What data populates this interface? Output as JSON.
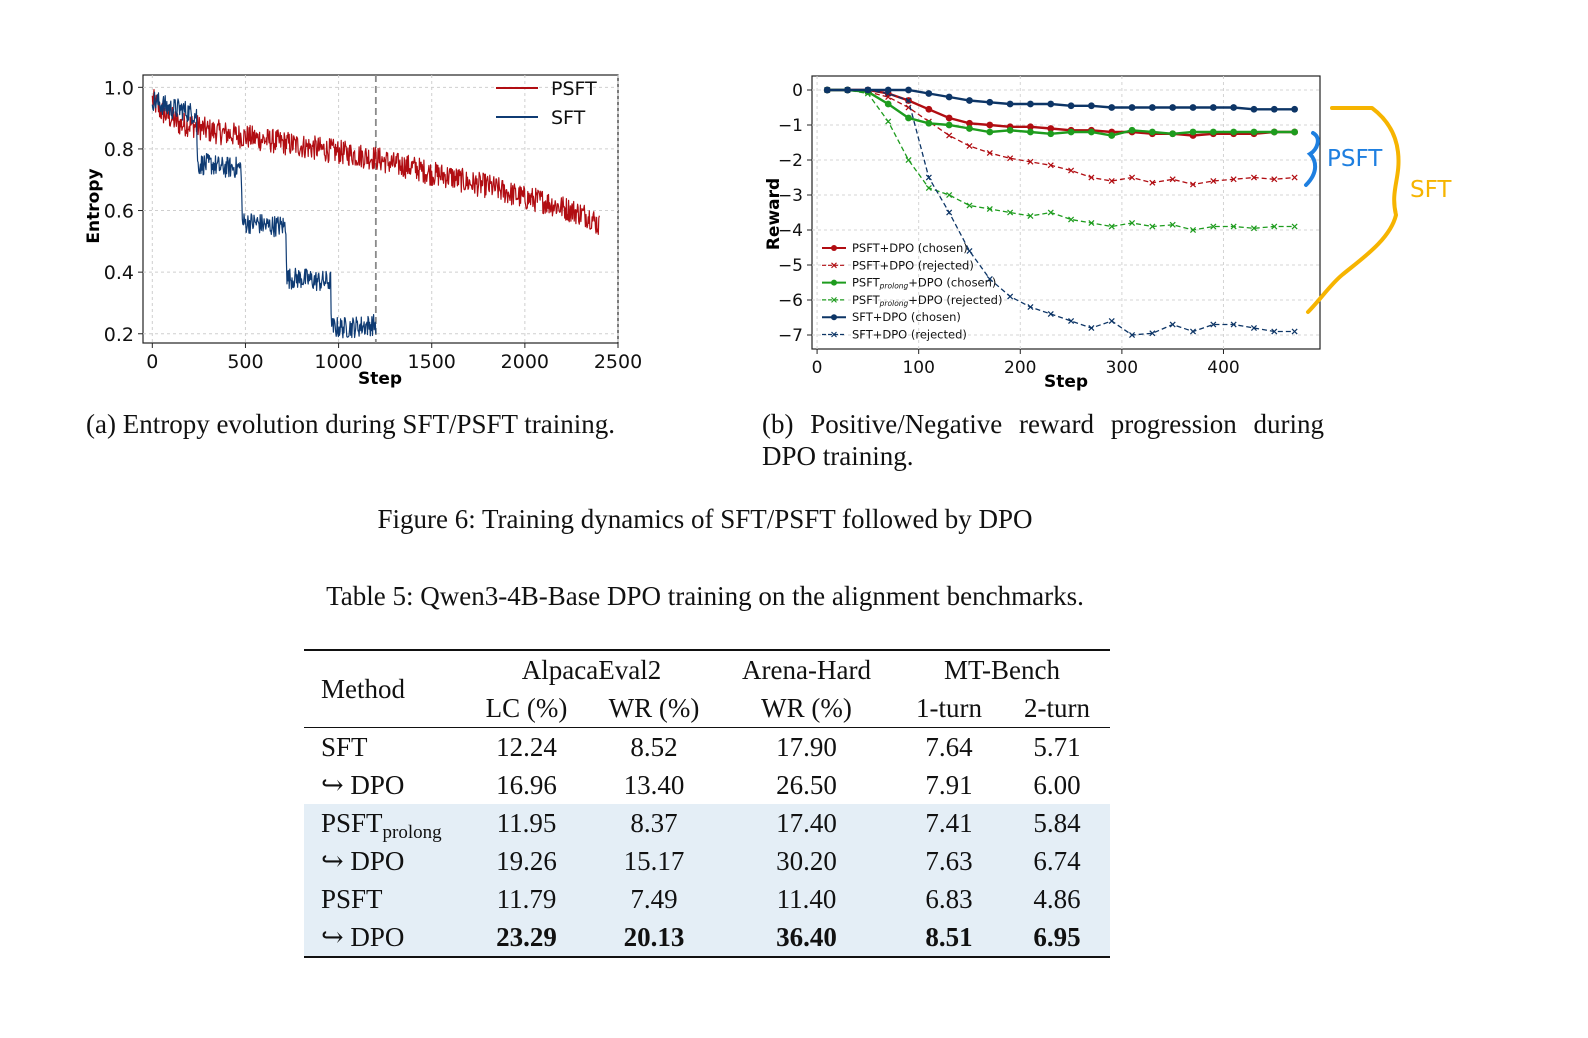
{
  "figure": {
    "caption": "Figure 6: Training dynamics of SFT/PSFT followed by DPO",
    "subcaption_a": "(a) Entropy evolution during SFT/PSFT training.",
    "subcaption_b": "(b) Positive/Negative reward progression during DPO training."
  },
  "chart_data": [
    {
      "type": "line",
      "title": "",
      "xlabel": "Step",
      "ylabel": "Entropy",
      "xlim": [
        -50,
        2500
      ],
      "ylim": [
        0.17,
        1.04
      ],
      "xticks": [
        "0",
        "500",
        "1000",
        "1500",
        "2000",
        "2500"
      ],
      "yticks": [
        "0.2",
        "0.4",
        "0.6",
        "0.8",
        "1.0"
      ],
      "grid": true,
      "legend_position": "top-right",
      "vline": {
        "x": 1200,
        "style": "dashed"
      },
      "series": [
        {
          "name": "PSFT",
          "color": "#b10d12",
          "noise": 0.04,
          "x": [
            0,
            50,
            100,
            150,
            200,
            250,
            300,
            400,
            500,
            600,
            700,
            800,
            900,
            1000,
            1100,
            1200,
            1300,
            1400,
            1500,
            1600,
            1700,
            1800,
            1900,
            2000,
            2100,
            2200,
            2300,
            2350,
            2400
          ],
          "y": [
            0.96,
            0.92,
            0.9,
            0.88,
            0.88,
            0.87,
            0.86,
            0.85,
            0.84,
            0.83,
            0.82,
            0.81,
            0.8,
            0.79,
            0.78,
            0.77,
            0.75,
            0.74,
            0.72,
            0.71,
            0.69,
            0.68,
            0.66,
            0.64,
            0.63,
            0.61,
            0.59,
            0.58,
            0.55
          ]
        },
        {
          "name": "SFT",
          "color": "#0f3b73",
          "noise": 0.035,
          "x": [
            0,
            100,
            150,
            239,
            241,
            320,
            370,
            479,
            481,
            560,
            620,
            719,
            721,
            800,
            900,
            959,
            961,
            1050,
            1200
          ],
          "y": [
            0.96,
            0.93,
            0.93,
            0.91,
            0.75,
            0.75,
            0.74,
            0.74,
            0.56,
            0.56,
            0.55,
            0.55,
            0.38,
            0.38,
            0.37,
            0.37,
            0.22,
            0.22,
            0.23
          ]
        }
      ]
    },
    {
      "type": "line",
      "title": "",
      "xlabel": "Step",
      "ylabel": "Reward",
      "xlim": [
        -5,
        495
      ],
      "ylim": [
        -7.4,
        0.4
      ],
      "xticks": [
        "0",
        "100",
        "200",
        "300",
        "400"
      ],
      "yticks": [
        "0",
        "−1",
        "−2",
        "−3",
        "−4",
        "−5",
        "−6",
        "−7"
      ],
      "grid": true,
      "legend_position": "bottom-left",
      "series": [
        {
          "name": "PSFT+DPO (chosen)",
          "color": "#b10d12",
          "style": "solid",
          "marker": "o",
          "x": [
            10,
            30,
            50,
            70,
            90,
            110,
            130,
            150,
            170,
            190,
            210,
            230,
            250,
            270,
            290,
            310,
            330,
            350,
            370,
            390,
            410,
            430,
            450,
            470
          ],
          "y": [
            0,
            0,
            0,
            -0.1,
            -0.3,
            -0.55,
            -0.8,
            -0.95,
            -1.0,
            -1.05,
            -1.05,
            -1.1,
            -1.15,
            -1.15,
            -1.2,
            -1.2,
            -1.25,
            -1.25,
            -1.3,
            -1.25,
            -1.25,
            -1.25,
            -1.2,
            -1.2
          ]
        },
        {
          "name": "PSFT+DPO (rejected)",
          "color": "#b10d12",
          "style": "dashed",
          "marker": "x",
          "x": [
            10,
            30,
            50,
            70,
            90,
            110,
            130,
            150,
            170,
            190,
            210,
            230,
            250,
            270,
            290,
            310,
            330,
            350,
            370,
            390,
            410,
            430,
            450,
            470
          ],
          "y": [
            0,
            0,
            -0.05,
            -0.2,
            -0.5,
            -0.9,
            -1.3,
            -1.6,
            -1.8,
            -1.95,
            -2.05,
            -2.15,
            -2.3,
            -2.5,
            -2.6,
            -2.5,
            -2.65,
            -2.55,
            -2.7,
            -2.6,
            -2.55,
            -2.5,
            -2.55,
            -2.5
          ]
        },
        {
          "name": "PSFT$_{prolong}$+DPO (chosen)",
          "name_base": "PSFT",
          "name_sub": "prolong",
          "name_suffix": "+DPO (chosen)",
          "color": "#1e9c1e",
          "style": "solid",
          "marker": "o",
          "x": [
            10,
            30,
            50,
            70,
            90,
            110,
            130,
            150,
            170,
            190,
            210,
            230,
            250,
            270,
            290,
            310,
            330,
            350,
            370,
            390,
            410,
            430,
            450,
            470
          ],
          "y": [
            0,
            0,
            -0.05,
            -0.4,
            -0.8,
            -0.95,
            -1.0,
            -1.1,
            -1.2,
            -1.15,
            -1.2,
            -1.25,
            -1.2,
            -1.2,
            -1.3,
            -1.15,
            -1.2,
            -1.25,
            -1.2,
            -1.2,
            -1.2,
            -1.2,
            -1.2,
            -1.2
          ]
        },
        {
          "name": "PSFT$_{prolong}$+DPO (rejected)",
          "name_base": "PSFT",
          "name_sub": "prolong",
          "name_suffix": "+DPO (rejected)",
          "color": "#1e9c1e",
          "style": "dashed",
          "marker": "x",
          "x": [
            10,
            30,
            50,
            70,
            90,
            110,
            130,
            150,
            170,
            190,
            210,
            230,
            250,
            270,
            290,
            310,
            330,
            350,
            370,
            390,
            410,
            430,
            450,
            470
          ],
          "y": [
            0,
            0,
            -0.1,
            -0.9,
            -2.0,
            -2.8,
            -3.0,
            -3.3,
            -3.4,
            -3.5,
            -3.6,
            -3.5,
            -3.7,
            -3.8,
            -3.9,
            -3.8,
            -3.9,
            -3.85,
            -4.0,
            -3.9,
            -3.9,
            -3.95,
            -3.9,
            -3.9
          ]
        },
        {
          "name": "SFT+DPO (chosen)",
          "color": "#0d3566",
          "style": "solid",
          "marker": "o",
          "x": [
            10,
            30,
            50,
            70,
            90,
            110,
            130,
            150,
            170,
            190,
            210,
            230,
            250,
            270,
            290,
            310,
            330,
            350,
            370,
            390,
            410,
            430,
            450,
            470
          ],
          "y": [
            0,
            0,
            0,
            0,
            0,
            -0.1,
            -0.2,
            -0.3,
            -0.35,
            -0.4,
            -0.4,
            -0.4,
            -0.45,
            -0.45,
            -0.5,
            -0.5,
            -0.5,
            -0.5,
            -0.5,
            -0.5,
            -0.5,
            -0.55,
            -0.55,
            -0.55
          ]
        },
        {
          "name": "SFT+DPO (rejected)",
          "color": "#0d3566",
          "style": "dashed",
          "marker": "x",
          "x": [
            10,
            30,
            50,
            70,
            90,
            110,
            130,
            150,
            170,
            190,
            210,
            230,
            250,
            270,
            290,
            310,
            330,
            350,
            370,
            390,
            410,
            430,
            450,
            470
          ],
          "y": [
            0,
            0,
            0,
            -0.1,
            -0.3,
            -2.5,
            -3.5,
            -4.6,
            -5.4,
            -5.9,
            -6.2,
            -6.4,
            -6.6,
            -6.8,
            -6.6,
            -7.0,
            -6.95,
            -6.7,
            -6.9,
            -6.7,
            -6.7,
            -6.8,
            -6.9,
            -6.9
          ]
        }
      ],
      "annotations": [
        {
          "text": "PSFT",
          "color": "#1e7fe0"
        },
        {
          "text": "SFT",
          "color": "#f6b400"
        }
      ]
    }
  ],
  "table": {
    "caption": "Table 5: Qwen3-4B-Base DPO training on the alignment benchmarks.",
    "header": {
      "method": "Method",
      "groups": [
        "AlpacaEval2",
        "Arena-Hard",
        "MT-Bench"
      ],
      "subcols": [
        "LC (%)",
        "WR (%)",
        "WR (%)",
        "1-turn",
        "2-turn"
      ]
    },
    "rows": [
      {
        "method": "SFT",
        "values": [
          "12.24",
          "8.52",
          "17.90",
          "7.64",
          "5.71"
        ]
      },
      {
        "method": "↪ DPO",
        "values": [
          "16.96",
          "13.40",
          "26.50",
          "7.91",
          "6.00"
        ]
      },
      {
        "method": "PSFT",
        "method_sub": "prolong",
        "values": [
          "11.95",
          "8.37",
          "17.40",
          "7.41",
          "5.84"
        ]
      },
      {
        "method": "↪ DPO",
        "values": [
          "19.26",
          "15.17",
          "30.20",
          "7.63",
          "6.74"
        ]
      },
      {
        "method": "PSFT",
        "values": [
          "11.79",
          "7.49",
          "11.40",
          "6.83",
          "4.86"
        ]
      },
      {
        "method": "↪ DPO",
        "values": [
          "23.29",
          "20.13",
          "36.40",
          "8.51",
          "6.95"
        ]
      }
    ]
  }
}
